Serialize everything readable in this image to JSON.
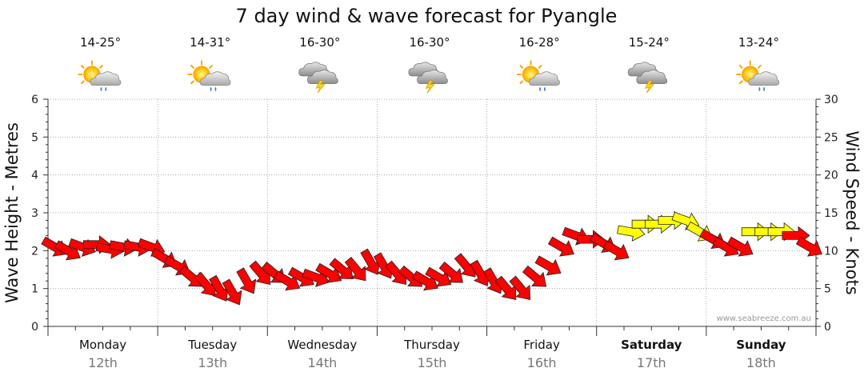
{
  "title": "7 day wind & wave forecast for Pyangle",
  "watermark": "www.seabreeze.com.au",
  "days": [
    {
      "day": "Monday",
      "date": "12th",
      "temp": "14-25°",
      "weather_icon": "sun-cloud-rain-icon",
      "bold": false
    },
    {
      "day": "Tuesday",
      "date": "13th",
      "temp": "14-31°",
      "weather_icon": "sun-cloud-rain-icon",
      "bold": false
    },
    {
      "day": "Wednesday",
      "date": "14th",
      "temp": "16-30°",
      "weather_icon": "storm-cloud-icon",
      "bold": false
    },
    {
      "day": "Thursday",
      "date": "15th",
      "temp": "16-30°",
      "weather_icon": "storm-cloud-icon",
      "bold": false
    },
    {
      "day": "Friday",
      "date": "16th",
      "temp": "16-28°",
      "weather_icon": "sun-cloud-rain-icon",
      "bold": false
    },
    {
      "day": "Saturday",
      "date": "17th",
      "temp": "15-24°",
      "weather_icon": "storm-cloud-icon",
      "bold": true
    },
    {
      "day": "Sunday",
      "date": "18th",
      "temp": "13-24°",
      "weather_icon": "sun-cloud-rain-icon",
      "bold": true
    }
  ],
  "chart_data": {
    "type": "line",
    "title": "7 day wind & wave forecast for Pyangle",
    "categories": [
      "Monday",
      "Tuesday",
      "Wednesday",
      "Thursday",
      "Friday",
      "Saturday",
      "Sunday"
    ],
    "y_left": {
      "label": "Wave Height - Metres",
      "lim": [
        0,
        6
      ],
      "ticks": [
        0,
        1,
        2,
        3,
        4,
        5,
        6
      ]
    },
    "y_right": {
      "label": "Wind Speed - Knots",
      "lim": [
        0,
        30
      ],
      "ticks": [
        0,
        5,
        10,
        15,
        20,
        25,
        30
      ]
    },
    "grid": true,
    "colors": {
      "arrow_red": "#ff0000",
      "arrow_yellow": "#ffff00",
      "outline": "#222222",
      "grid": "#999999"
    },
    "wind_series": {
      "name": "",
      "unit": "knots",
      "x_days": [
        0.0,
        0.12,
        0.25,
        0.38,
        0.5,
        0.62,
        0.75,
        0.88,
        1.0,
        1.12,
        1.25,
        1.38,
        1.5,
        1.62,
        1.75,
        1.88,
        2.0,
        2.12,
        2.25,
        2.38,
        2.5,
        2.62,
        2.75,
        2.88,
        3.0,
        3.12,
        3.25,
        3.38,
        3.5,
        3.62,
        3.75,
        3.88,
        4.0,
        4.12,
        4.25,
        4.38,
        4.5,
        4.62,
        4.75,
        4.88,
        5.0,
        5.12,
        5.25,
        5.38,
        5.5,
        5.62,
        5.75,
        5.88,
        6.0,
        6.12,
        6.25,
        6.38,
        6.5,
        6.62,
        6.75,
        6.88
      ],
      "speed_knots": [
        10.5,
        10.0,
        10.5,
        10.8,
        10.2,
        10.5,
        10.5,
        10.5,
        9.0,
        8.0,
        6.5,
        5.5,
        5.0,
        4.5,
        6.0,
        7.0,
        7.0,
        6.0,
        6.5,
        6.5,
        7.0,
        7.5,
        7.5,
        8.5,
        8.0,
        7.0,
        6.5,
        6.0,
        6.5,
        7.0,
        8.0,
        7.0,
        6.0,
        5.0,
        5.0,
        6.5,
        8.0,
        10.5,
        12.0,
        11.5,
        11.0,
        10.0,
        12.5,
        13.5,
        13.5,
        14.0,
        14.0,
        12.5,
        11.5,
        10.5,
        10.5,
        12.5,
        12.5,
        12.5,
        12.0,
        10.5
      ],
      "direction_deg": [
        300,
        300,
        290,
        270,
        280,
        280,
        280,
        290,
        300,
        300,
        310,
        320,
        330,
        330,
        330,
        320,
        310,
        300,
        300,
        290,
        300,
        310,
        320,
        330,
        330,
        320,
        310,
        300,
        300,
        310,
        320,
        330,
        330,
        320,
        320,
        310,
        300,
        300,
        290,
        270,
        300,
        300,
        280,
        270,
        270,
        270,
        290,
        300,
        300,
        300,
        300,
        270,
        270,
        270,
        270,
        300
      ],
      "strong_threshold_knots": 12.5
    }
  }
}
